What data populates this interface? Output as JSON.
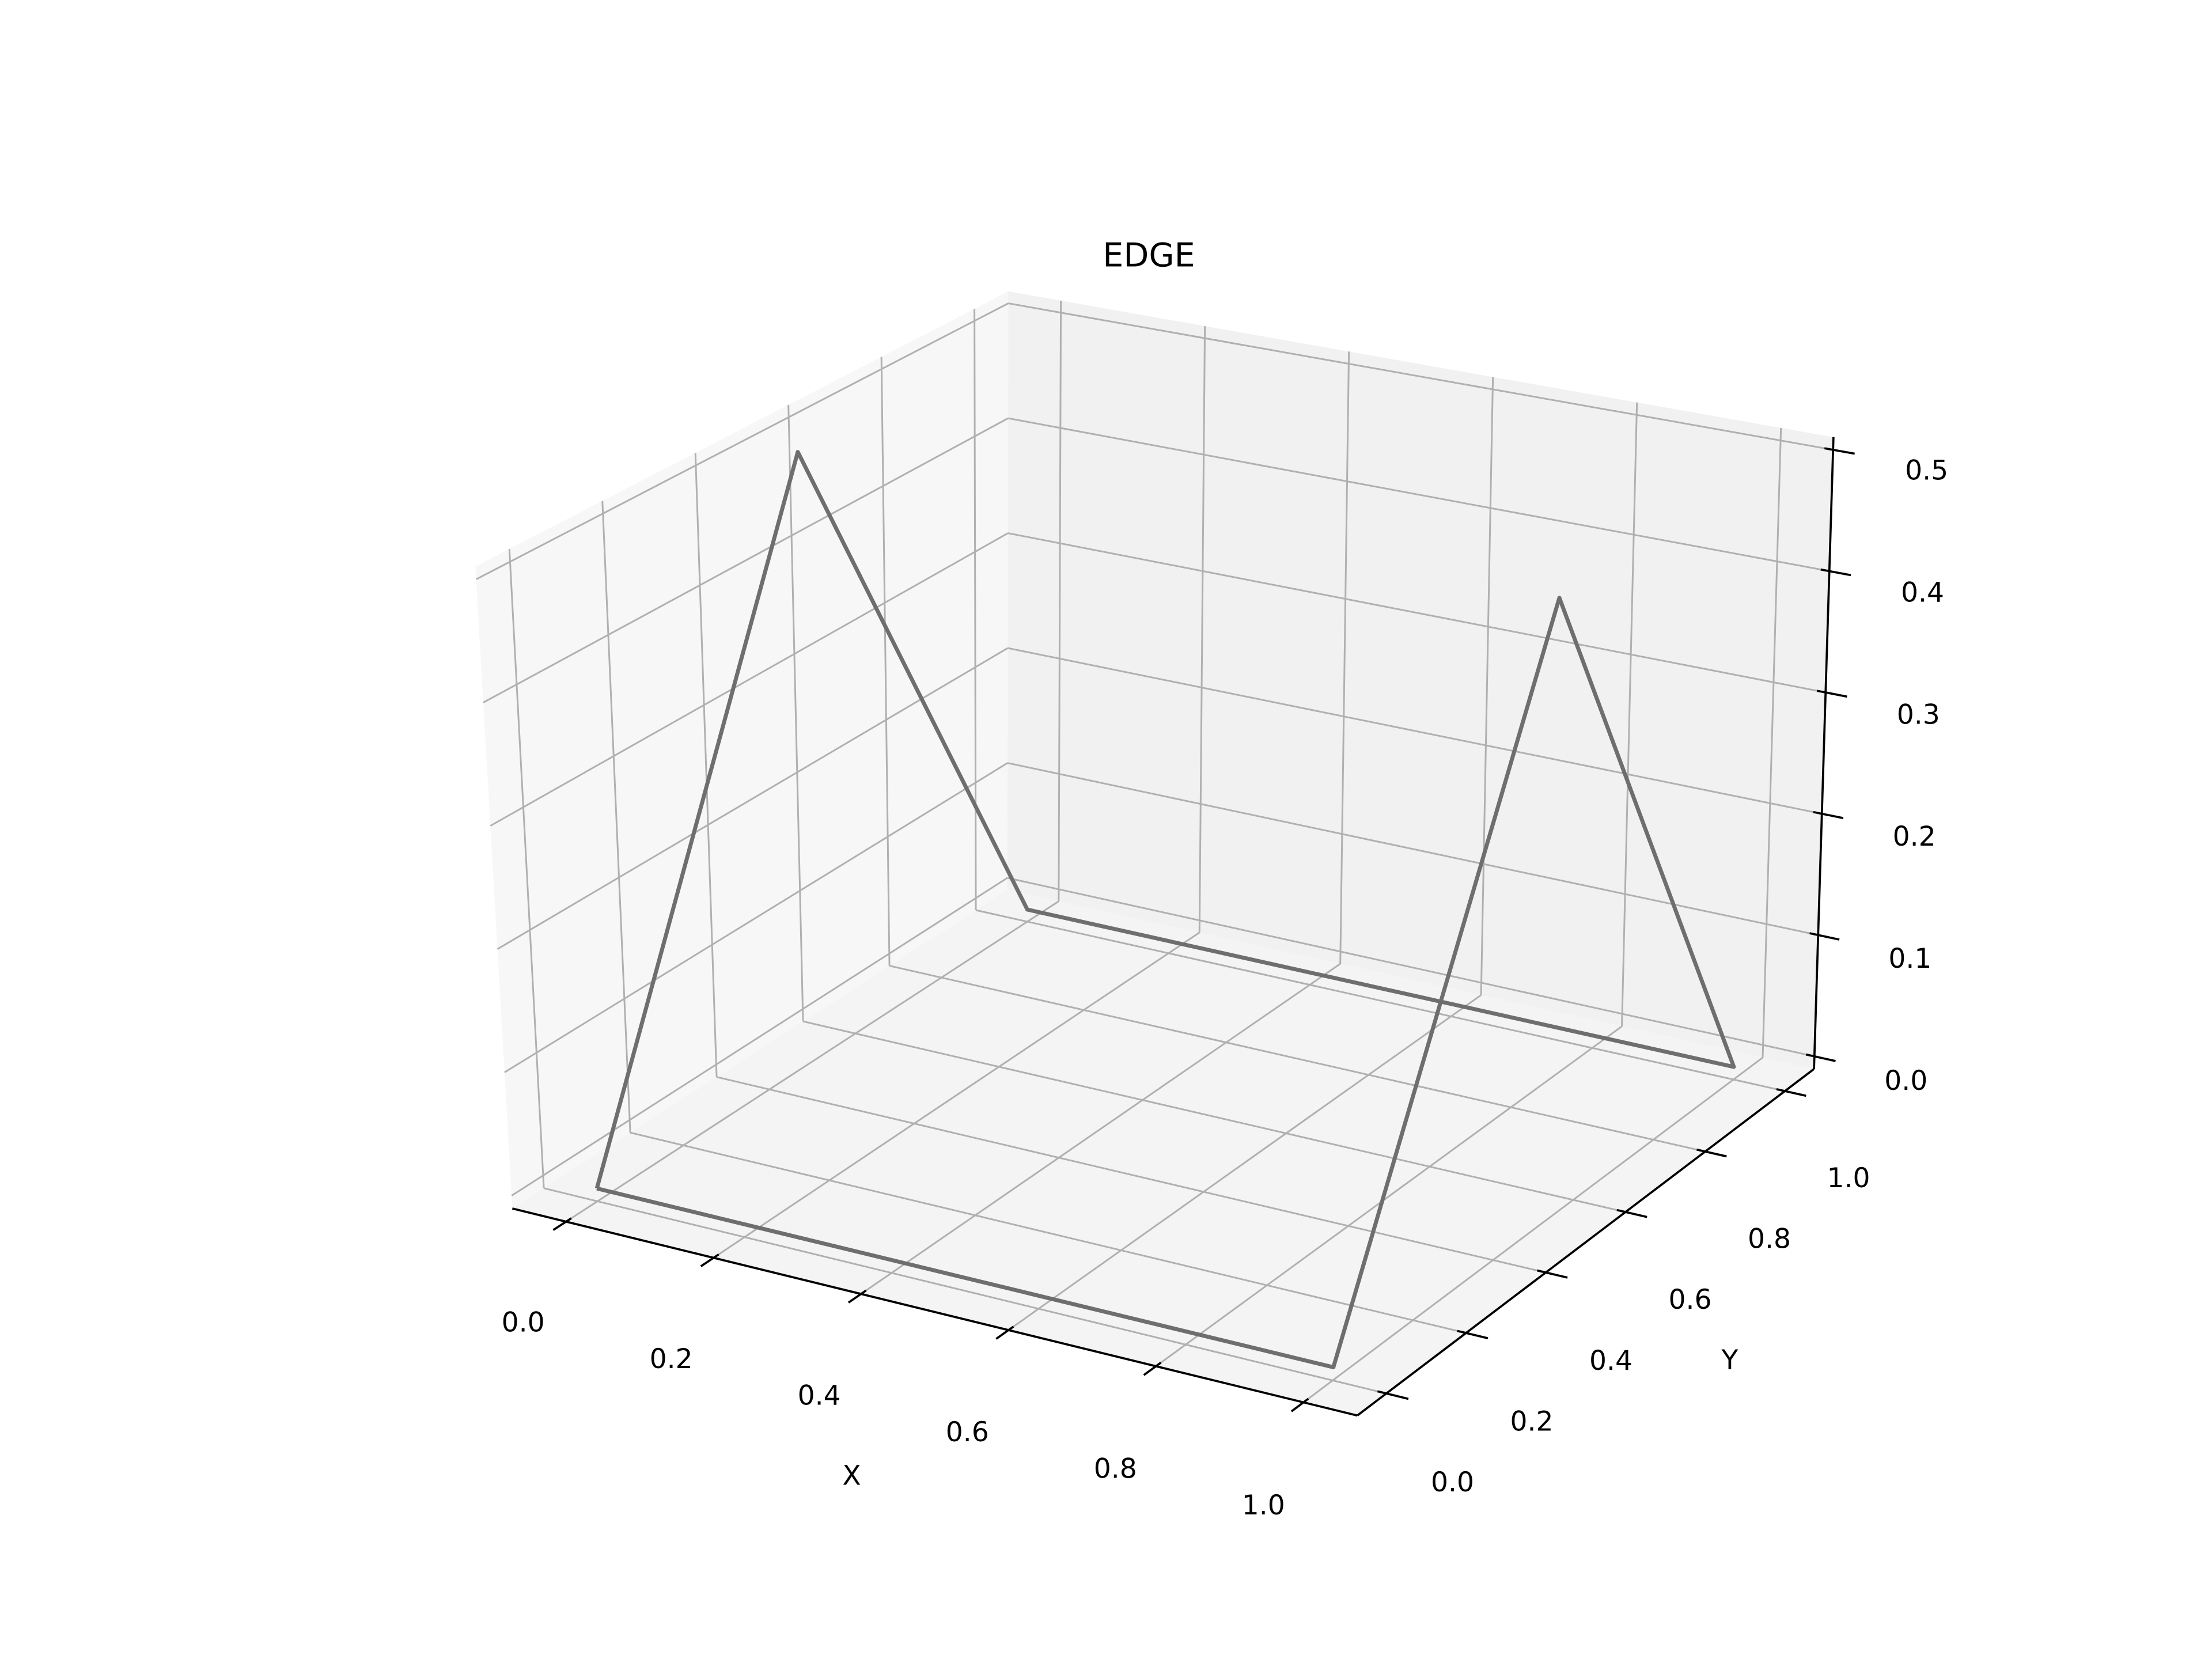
{
  "chart_data": {
    "type": "line3d",
    "title": "EDGE",
    "xlabel": "X",
    "ylabel": "Y",
    "x": [
      0,
      0,
      0,
      1,
      1,
      1,
      0
    ],
    "y": [
      0,
      0.5,
      1,
      1,
      0.5,
      0,
      0
    ],
    "z": [
      0,
      0.5,
      0,
      0,
      0.5,
      0,
      0
    ],
    "color": "#6e6e6e",
    "xlim": [
      -0.05,
      1.05
    ],
    "ylim": [
      -0.05,
      1.05
    ],
    "zlim": [
      0,
      0.5
    ],
    "xticks": [
      {
        "value": 0,
        "label": "0.0"
      },
      0.2,
      0.4,
      0.6,
      0.8,
      {
        "value": 1,
        "label": "1.0"
      }
    ],
    "yticks": [
      {
        "value": 0,
        "label": "0.0"
      },
      0.2,
      0.4,
      0.6,
      0.8,
      {
        "value": 1,
        "label": "1.0"
      }
    ],
    "zticks": [
      {
        "value": 0,
        "label": "0.0"
      },
      0.1,
      0.2,
      0.3,
      0.4,
      0.5
    ],
    "grid": true
  }
}
